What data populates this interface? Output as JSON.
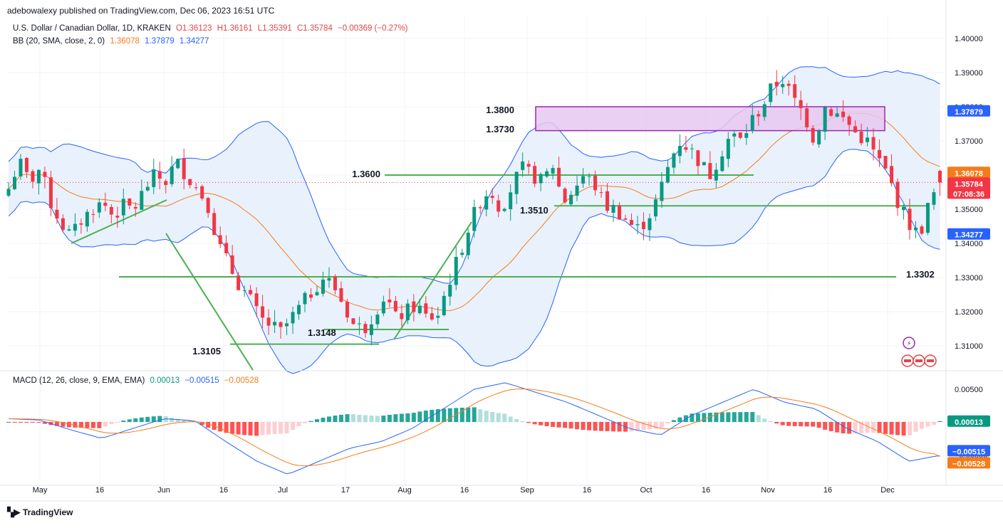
{
  "header": {
    "publisher_line": "adebowalexy published on TradingView.com, Dec 06, 2023 16:51 UTC"
  },
  "legend": {
    "symbol": "U.S. Dollar / Canadian Dollar, 1D, KRAKEN",
    "open": "O1.36123",
    "high": "H1.36161",
    "low": "L1.35391",
    "close": "C1.35784",
    "change": "−0.00369 (−0.27%)",
    "bb_label": "BB (20, SMA, close, 2, 0)",
    "bb_basis": "1.36078",
    "bb_upper": "1.37879",
    "bb_lower": "1.34277",
    "macd_label": "MACD (12, 26, close, 9, EMA, EMA)",
    "macd_hist": "0.00013",
    "macd_line": "−0.00515",
    "macd_signal": "−0.00528"
  },
  "colors": {
    "up": "#089981",
    "down": "#f23645",
    "bb_basis": "#f57c18",
    "bb_band": "#2962ff",
    "bb_fill": "#e9f1fc",
    "annotation_line": "#4caf50",
    "zone_fill": "#e6c8f0",
    "zone_border": "#9c27b0",
    "hist_up_strong": "#26a69a",
    "hist_up_weak": "#b2dfdb",
    "hist_down_strong": "#ff5252",
    "hist_down_weak": "#ffcdd2"
  },
  "footer": {
    "brand": "TradingView",
    "brand_icon": "tradingview-logo-icon"
  },
  "chart_data": {
    "type": "candlestick",
    "title": "U.S. Dollar / Canadian Dollar, 1D, KRAKEN",
    "price_axis": {
      "ticks": [
        "1.40000",
        "1.39000",
        "1.38000",
        "1.37000",
        "1.36000",
        "1.35000",
        "1.34000",
        "1.33000",
        "1.32000",
        "1.31000"
      ],
      "ylim": [
        1.3035,
        1.4095
      ]
    },
    "macd_axis": {
      "ticks": [
        "0.00500",
        "−0.00500"
      ],
      "ylim": [
        -0.0085,
        0.0075
      ]
    },
    "time_axis": [
      "May",
      "16",
      "Jun",
      "16",
      "Jul",
      "17",
      "Aug",
      "16",
      "Sep",
      "16",
      "Oct",
      "16",
      "Nov",
      "16",
      "Dec"
    ],
    "price_labels": {
      "bb_basis": "1.36078",
      "last_close": "1.35784",
      "countdown": "07:08:36",
      "bb_upper": "1.37879",
      "bb_lower": "1.34277"
    },
    "macd_labels": {
      "hist": "0.00013",
      "macd": "−0.00515",
      "signal": "−0.00528"
    },
    "annotations": [
      {
        "label": "1.3800",
        "value": 1.38
      },
      {
        "label": "1.3730",
        "value": 1.373
      },
      {
        "label": "1.3600",
        "value": 1.36
      },
      {
        "label": "1.3510",
        "value": 1.351
      },
      {
        "label": "1.3302",
        "value": 1.3302
      },
      {
        "label": "1.3148",
        "value": 1.3148
      },
      {
        "label": "1.3105",
        "value": 1.3105
      }
    ],
    "zone": {
      "from": 1.373,
      "to": 1.38
    },
    "close_anchors": [
      [
        1.356,
        1.364,
        1.358,
        1.362,
        1.352,
        1.346,
        1.342,
        1.347,
        1.35,
        1.352,
        1.348,
        1.351,
        1.35,
        1.356,
        1.36,
        1.358,
        1.364,
        1.36,
        1.356,
        1.352
      ],
      [
        1.34,
        1.334,
        1.328,
        1.324,
        1.318,
        1.316,
        1.314,
        1.318,
        1.322,
        1.326,
        1.33,
        1.328,
        1.322,
        1.316,
        1.315,
        1.32,
        1.325,
        1.318,
        1.32,
        1.322,
        1.318,
        1.319,
        1.328,
        1.336,
        1.345,
        1.352,
        1.356,
        1.35,
        1.356
      ],
      [
        1.362,
        1.36,
        1.358,
        1.363,
        1.352,
        1.356,
        1.36,
        1.357,
        1.351,
        1.35,
        1.347,
        1.344,
        1.347,
        1.353,
        1.362,
        1.37,
        1.368,
        1.364,
        1.36,
        1.366,
        1.372,
        1.37,
        1.376,
        1.38,
        1.386,
        1.388,
        1.382,
        1.378,
        1.37
      ],
      [
        1.38,
        1.378,
        1.376,
        1.372,
        1.37,
        1.365,
        1.36,
        1.352,
        1.346,
        1.342,
        1.352,
        1.3578
      ]
    ],
    "macd_anchors": [
      0.0005,
      0.0003,
      -0.0012,
      -0.0025,
      -0.001,
      0.0005,
      0.0002,
      -0.003,
      -0.006,
      -0.008,
      -0.006,
      -0.004,
      -0.003,
      -0.001,
      0.002,
      0.005,
      0.006,
      0.0045,
      0.003,
      0.001,
      -0.001,
      -0.002,
      0.001,
      0.003,
      0.005,
      0.003,
      0.002,
      -0.001,
      -0.003,
      -0.006,
      -0.0051
    ]
  }
}
